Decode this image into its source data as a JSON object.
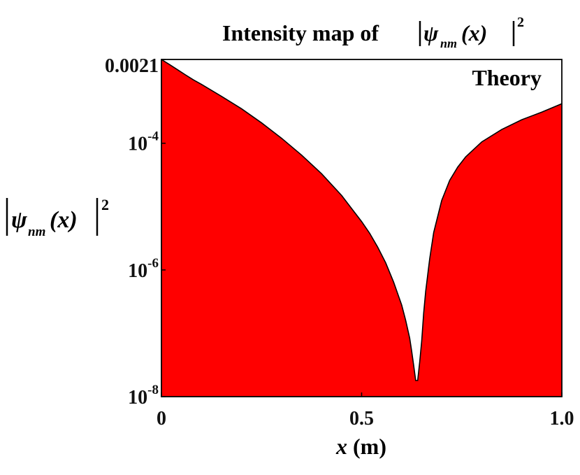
{
  "chart_data": {
    "type": "area",
    "title": {
      "prefix": "Intensity map of ",
      "psi": "ψ",
      "sub": "nm",
      "arg": "(x)",
      "power": "2"
    },
    "annotation": "Theory",
    "xlabel": {
      "var": "x",
      "unit": " (m)"
    },
    "ylabel": {
      "psi": "ψ",
      "sub": "nm",
      "arg": "(x)",
      "power": "2"
    },
    "x_scale": "linear",
    "y_scale": "log",
    "xlim": [
      0,
      1.0
    ],
    "ylim": [
      1e-08,
      0.0021
    ],
    "x_ticks": [
      {
        "value": 0,
        "label": "0"
      },
      {
        "value": 0.5,
        "label": "0.5"
      },
      {
        "value": 1.0,
        "label": "1.0"
      }
    ],
    "y_ticks": [
      {
        "value": 1e-08,
        "base": "10",
        "exp": "-8"
      },
      {
        "value": 1e-06,
        "base": "10",
        "exp": "-6"
      },
      {
        "value": 0.0001,
        "base": "10",
        "exp": "-4"
      },
      {
        "value": 0.0021,
        "label": "0.0021"
      }
    ],
    "grid": false,
    "fill_color": "#ff0000",
    "line_color": "#000000",
    "series": [
      {
        "x": [
          0,
          0.02,
          0.04,
          0.06,
          0.08,
          0.1,
          0.15,
          0.2,
          0.25,
          0.3,
          0.35,
          0.4,
          0.45,
          0.5,
          0.52,
          0.54,
          0.56,
          0.58,
          0.6,
          0.61,
          0.62,
          0.625,
          0.63,
          0.635,
          0.64,
          0.645,
          0.65,
          0.655,
          0.66,
          0.67,
          0.68,
          0.7,
          0.72,
          0.74,
          0.76,
          0.8,
          0.85,
          0.9,
          0.95,
          1.0
        ],
        "y": [
          0.0021,
          0.00175,
          0.00145,
          0.0012,
          0.001,
          0.00085,
          0.00055,
          0.00035,
          0.00021,
          0.00012,
          6.5e-05,
          3.3e-05,
          1.5e-05,
          5.8e-06,
          3.8e-06,
          2.3e-06,
          1.3e-06,
          6.4e-07,
          2.8e-07,
          1.6e-07,
          8.4e-08,
          5.2e-08,
          3.1e-08,
          1.8e-08,
          1.8e-08,
          3.5e-08,
          7.5e-08,
          2.1e-07,
          4.6e-07,
          1.5e-06,
          3.9e-06,
          1.25e-05,
          2.6e-05,
          4.2e-05,
          6.1e-05,
          0.000105,
          0.000165,
          0.000235,
          0.00031,
          0.00042
        ]
      }
    ]
  }
}
